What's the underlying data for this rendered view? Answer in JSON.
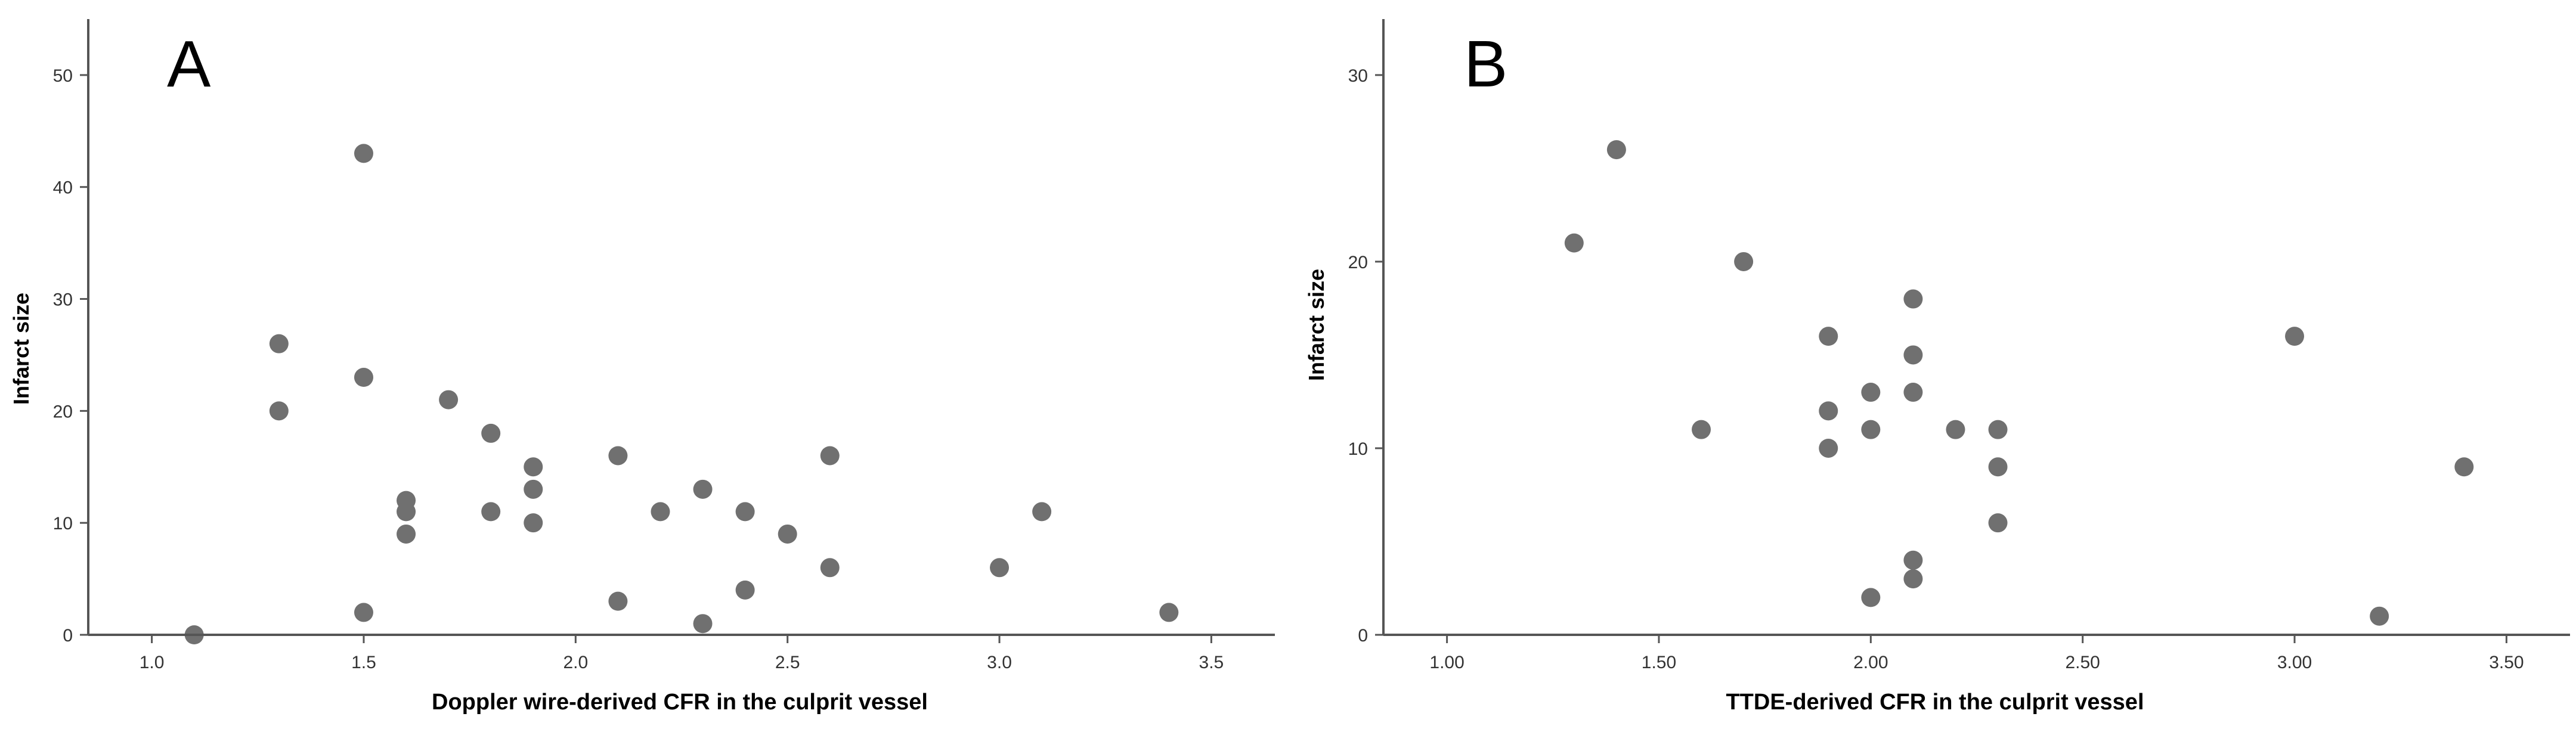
{
  "chart_data": [
    {
      "type": "scatter",
      "panel_label": "A",
      "xlabel": "Doppler wire-derived CFR in the culprit vessel",
      "ylabel": "Infarct size",
      "xlim": [
        0.85,
        3.65
      ],
      "ylim": [
        0,
        55
      ],
      "x_ticks": [
        1.0,
        1.5,
        2.0,
        2.5,
        3.0,
        3.5
      ],
      "x_tick_labels": [
        "1.0",
        "1.5",
        "2.0",
        "2.5",
        "3.0",
        "3.5"
      ],
      "y_ticks": [
        0,
        10,
        20,
        30,
        40,
        50
      ],
      "y_tick_labels": [
        "0",
        "10",
        "20",
        "30",
        "40",
        "50"
      ],
      "grid": false,
      "marker_color": "#707070",
      "points": [
        {
          "x": 1.1,
          "y": 0
        },
        {
          "x": 1.3,
          "y": 26
        },
        {
          "x": 1.3,
          "y": 20
        },
        {
          "x": 1.5,
          "y": 43
        },
        {
          "x": 1.5,
          "y": 23
        },
        {
          "x": 1.5,
          "y": 2
        },
        {
          "x": 1.6,
          "y": 12
        },
        {
          "x": 1.6,
          "y": 11
        },
        {
          "x": 1.6,
          "y": 9
        },
        {
          "x": 1.7,
          "y": 21
        },
        {
          "x": 1.8,
          "y": 18
        },
        {
          "x": 1.8,
          "y": 11
        },
        {
          "x": 1.9,
          "y": 15
        },
        {
          "x": 1.9,
          "y": 13
        },
        {
          "x": 1.9,
          "y": 10
        },
        {
          "x": 2.1,
          "y": 16
        },
        {
          "x": 2.1,
          "y": 3
        },
        {
          "x": 2.2,
          "y": 11
        },
        {
          "x": 2.3,
          "y": 13
        },
        {
          "x": 2.3,
          "y": 1
        },
        {
          "x": 2.4,
          "y": 11
        },
        {
          "x": 2.4,
          "y": 4
        },
        {
          "x": 2.5,
          "y": 9
        },
        {
          "x": 2.6,
          "y": 16
        },
        {
          "x": 2.6,
          "y": 6
        },
        {
          "x": 3.0,
          "y": 6
        },
        {
          "x": 3.1,
          "y": 11
        },
        {
          "x": 3.4,
          "y": 2
        }
      ]
    },
    {
      "type": "scatter",
      "panel_label": "B",
      "xlabel": "TTDE-derived CFR in the culprit vessel",
      "ylabel": "Infarct size",
      "xlim": [
        0.85,
        3.65
      ],
      "ylim": [
        0,
        33
      ],
      "x_ticks": [
        1.0,
        1.5,
        2.0,
        2.5,
        3.0,
        3.5
      ],
      "x_tick_labels": [
        "1.00",
        "1.50",
        "2.00",
        "2.50",
        "3.00",
        "3.50"
      ],
      "y_ticks": [
        0,
        10,
        20,
        30
      ],
      "y_tick_labels": [
        "0",
        "10",
        "20",
        "30"
      ],
      "grid": false,
      "marker_color": "#707070",
      "points": [
        {
          "x": 1.3,
          "y": 21
        },
        {
          "x": 1.4,
          "y": 26
        },
        {
          "x": 1.6,
          "y": 11
        },
        {
          "x": 1.7,
          "y": 20
        },
        {
          "x": 1.9,
          "y": 16
        },
        {
          "x": 1.9,
          "y": 12
        },
        {
          "x": 1.9,
          "y": 10
        },
        {
          "x": 2.0,
          "y": 13
        },
        {
          "x": 2.0,
          "y": 11
        },
        {
          "x": 2.0,
          "y": 2
        },
        {
          "x": 2.1,
          "y": 18
        },
        {
          "x": 2.1,
          "y": 15
        },
        {
          "x": 2.1,
          "y": 13
        },
        {
          "x": 2.1,
          "y": 4
        },
        {
          "x": 2.1,
          "y": 3
        },
        {
          "x": 2.2,
          "y": 11
        },
        {
          "x": 2.3,
          "y": 11
        },
        {
          "x": 2.3,
          "y": 9
        },
        {
          "x": 2.3,
          "y": 6
        },
        {
          "x": 3.0,
          "y": 16
        },
        {
          "x": 3.2,
          "y": 1
        },
        {
          "x": 3.4,
          "y": 9
        }
      ]
    }
  ]
}
